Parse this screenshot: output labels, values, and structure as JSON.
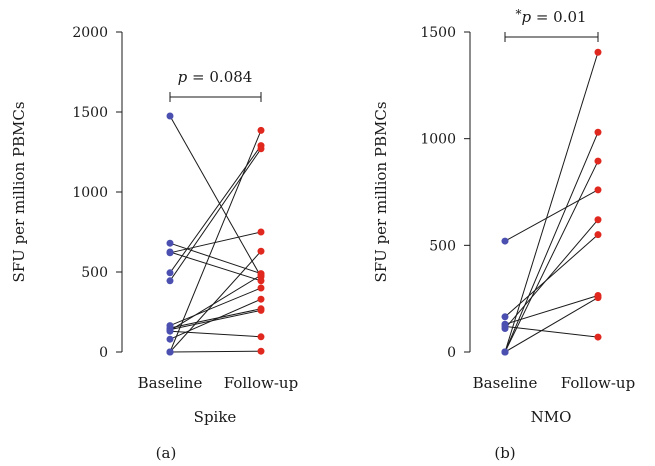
{
  "colors": {
    "baseline": "#4a4fb0",
    "followup": "#e0281f",
    "line": "#1a1a1a"
  },
  "chart_data": [
    {
      "type": "scatter",
      "panel": "(a)",
      "group": "Spike",
      "ylabel": "SFU per million PBMCs",
      "xlabel": "",
      "categories": [
        "Baseline",
        "Follow-up"
      ],
      "ylim": [
        0,
        2000
      ],
      "yticks": [
        0,
        500,
        1000,
        1500,
        2000
      ],
      "pvalue": "p = 0.084",
      "pvalue_parts": {
        "star": "",
        "p": "p",
        "rest": " = 0.084"
      },
      "pairs": [
        [
          1475,
          470
        ],
        [
          680,
          490
        ],
        [
          620,
          750
        ],
        [
          625,
          445
        ],
        [
          495,
          1290
        ],
        [
          445,
          1270
        ],
        [
          165,
          400
        ],
        [
          150,
          270
        ],
        [
          140,
          260
        ],
        [
          135,
          480
        ],
        [
          130,
          95
        ],
        [
          80,
          330
        ],
        [
          0,
          1385
        ],
        [
          0,
          630
        ],
        [
          0,
          5
        ]
      ]
    },
    {
      "type": "scatter",
      "panel": "(b)",
      "group": "NMO",
      "ylabel": "SFU per million PBMCs",
      "xlabel": "",
      "categories": [
        "Baseline",
        "Follow-up"
      ],
      "ylim": [
        0,
        1500
      ],
      "yticks": [
        0,
        500,
        1000,
        1500
      ],
      "pvalue": "*p = 0.01",
      "pvalue_parts": {
        "star": "*",
        "p": "p",
        "rest": " = 0.01"
      },
      "pairs": [
        [
          520,
          760
        ],
        [
          165,
          550
        ],
        [
          130,
          265
        ],
        [
          120,
          70
        ],
        [
          110,
          620
        ],
        [
          0,
          1405
        ],
        [
          0,
          1030
        ],
        [
          0,
          895
        ],
        [
          0,
          255
        ]
      ]
    }
  ]
}
